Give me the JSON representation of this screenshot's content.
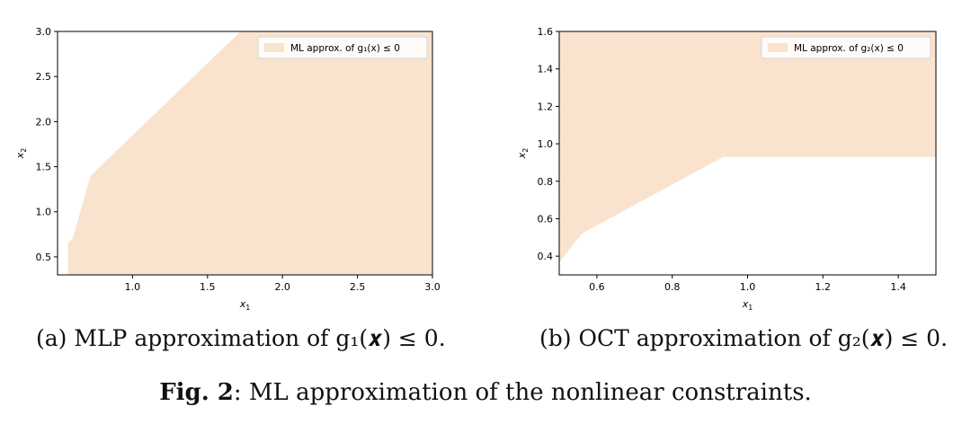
{
  "chart_data": [
    {
      "type": "area",
      "xlabel": "x",
      "xlabel_sub": "1",
      "ylabel": "x",
      "ylabel_sub": "2",
      "xlim": [
        0.5,
        3.0
      ],
      "ylim": [
        0.3,
        3.0
      ],
      "xticks": [
        1.0,
        1.5,
        2.0,
        2.5,
        3.0
      ],
      "xtick_labels": [
        "1.0",
        "1.5",
        "2.0",
        "2.5",
        "3.0"
      ],
      "yticks": [
        0.5,
        1.0,
        1.5,
        2.0,
        2.5,
        3.0
      ],
      "ytick_labels": [
        "0.5",
        "1.0",
        "1.5",
        "2.0",
        "2.5",
        "3.0"
      ],
      "legend": {
        "label": "ML approx. of g₁(x) ≤ 0",
        "loc": "upper right"
      },
      "fill_color": "#f9e3cf",
      "region": [
        [
          0.57,
          0.3
        ],
        [
          0.57,
          0.66
        ],
        [
          0.6,
          0.7
        ],
        [
          0.72,
          1.4
        ],
        [
          1.72,
          3.0
        ],
        [
          3.0,
          3.0
        ],
        [
          3.0,
          0.3
        ]
      ],
      "grid": false
    },
    {
      "type": "area",
      "xlabel": "x",
      "xlabel_sub": "1",
      "ylabel": "x",
      "ylabel_sub": "2",
      "xlim": [
        0.5,
        1.5
      ],
      "ylim": [
        0.3,
        1.6
      ],
      "xticks": [
        0.6,
        0.8,
        1.0,
        1.2,
        1.4
      ],
      "xtick_labels": [
        "0.6",
        "0.8",
        "1.0",
        "1.2",
        "1.4"
      ],
      "yticks": [
        0.4,
        0.6,
        0.8,
        1.0,
        1.2,
        1.4,
        1.6
      ],
      "ytick_labels": [
        "0.4",
        "0.6",
        "0.8",
        "1.0",
        "1.2",
        "1.4",
        "1.6"
      ],
      "legend": {
        "label": "ML approx. of g₂(x) ≤ 0",
        "loc": "upper right"
      },
      "fill_color": "#f9e3cf",
      "region": [
        [
          0.5,
          0.36
        ],
        [
          0.505,
          0.38
        ],
        [
          0.56,
          0.52
        ],
        [
          0.935,
          0.93
        ],
        [
          1.5,
          0.93
        ],
        [
          1.5,
          1.6
        ],
        [
          0.5,
          1.6
        ]
      ],
      "grid": false
    }
  ],
  "captions": {
    "a": "(a) MLP approximation of g₁(𝒙) ≤ 0.",
    "b": "(b) OCT approximation of g₂(𝒙) ≤ 0.",
    "fig_label": "Fig. 2",
    "fig_text": ": ML approximation of the nonlinear constraints."
  }
}
